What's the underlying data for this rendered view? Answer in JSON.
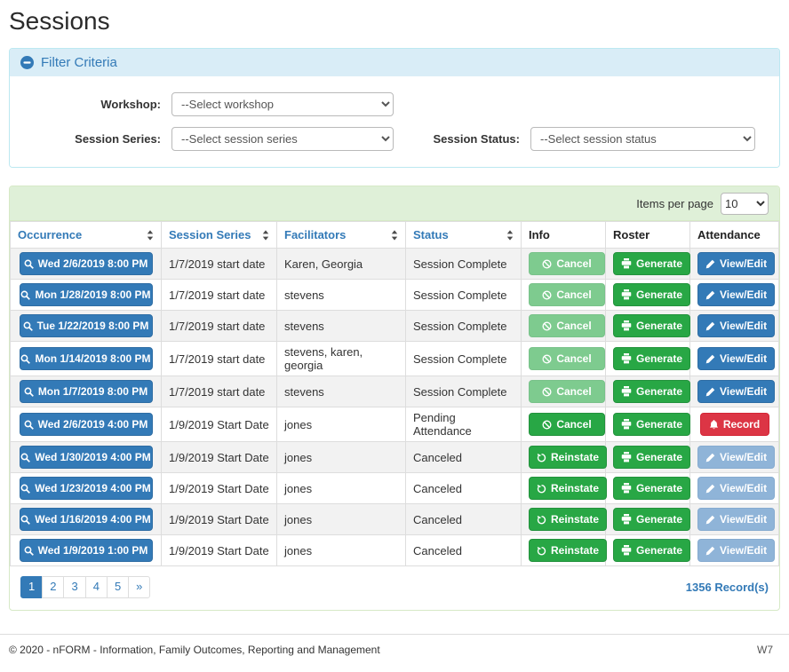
{
  "page": {
    "title": "Sessions"
  },
  "filter": {
    "title": "Filter Criteria",
    "fields": [
      {
        "label": "Workshop:",
        "value": "--Select workshop"
      },
      {
        "label": "Session Series:",
        "value": "--Select session series"
      },
      {
        "label": "Session Status:",
        "value": "--Select session status"
      }
    ]
  },
  "table": {
    "items_per_page_label": "Items per page",
    "items_per_page_value": "10",
    "columns": [
      {
        "label": "Occurrence",
        "sortable": true
      },
      {
        "label": "Session Series",
        "sortable": true
      },
      {
        "label": "Facilitators",
        "sortable": true
      },
      {
        "label": "Status",
        "sortable": true
      },
      {
        "label": "Info",
        "sortable": false
      },
      {
        "label": "Roster",
        "sortable": false
      },
      {
        "label": "Attendance",
        "sortable": false
      }
    ],
    "rows": [
      {
        "occurrence": "Wed 2/6/2019 8:00 PM",
        "series": "1/7/2019 start date",
        "facilitators": "Karen, Georgia",
        "status": "Session Complete",
        "info": {
          "label": "Cancel",
          "icon": "ban-icon",
          "variant": "success",
          "disabled": true
        },
        "roster": {
          "label": "Generate",
          "icon": "printer-icon",
          "variant": "success",
          "disabled": false
        },
        "attendance": {
          "label": "View/Edit",
          "icon": "pencil-icon",
          "variant": "primary",
          "disabled": false
        }
      },
      {
        "occurrence": "Mon 1/28/2019 8:00 PM",
        "series": "1/7/2019 start date",
        "facilitators": "stevens",
        "status": "Session Complete",
        "info": {
          "label": "Cancel",
          "icon": "ban-icon",
          "variant": "success",
          "disabled": true
        },
        "roster": {
          "label": "Generate",
          "icon": "printer-icon",
          "variant": "success",
          "disabled": false
        },
        "attendance": {
          "label": "View/Edit",
          "icon": "pencil-icon",
          "variant": "primary",
          "disabled": false
        }
      },
      {
        "occurrence": "Tue 1/22/2019 8:00 PM",
        "series": "1/7/2019 start date",
        "facilitators": "stevens",
        "status": "Session Complete",
        "info": {
          "label": "Cancel",
          "icon": "ban-icon",
          "variant": "success",
          "disabled": true
        },
        "roster": {
          "label": "Generate",
          "icon": "printer-icon",
          "variant": "success",
          "disabled": false
        },
        "attendance": {
          "label": "View/Edit",
          "icon": "pencil-icon",
          "variant": "primary",
          "disabled": false
        }
      },
      {
        "occurrence": "Mon 1/14/2019 8:00 PM",
        "series": "1/7/2019 start date",
        "facilitators": "stevens, karen, georgia",
        "status": "Session Complete",
        "info": {
          "label": "Cancel",
          "icon": "ban-icon",
          "variant": "success",
          "disabled": true
        },
        "roster": {
          "label": "Generate",
          "icon": "printer-icon",
          "variant": "success",
          "disabled": false
        },
        "attendance": {
          "label": "View/Edit",
          "icon": "pencil-icon",
          "variant": "primary",
          "disabled": false
        }
      },
      {
        "occurrence": "Mon 1/7/2019 8:00 PM",
        "series": "1/7/2019 start date",
        "facilitators": "stevens",
        "status": "Session Complete",
        "info": {
          "label": "Cancel",
          "icon": "ban-icon",
          "variant": "success",
          "disabled": true
        },
        "roster": {
          "label": "Generate",
          "icon": "printer-icon",
          "variant": "success",
          "disabled": false
        },
        "attendance": {
          "label": "View/Edit",
          "icon": "pencil-icon",
          "variant": "primary",
          "disabled": false
        }
      },
      {
        "occurrence": "Wed 2/6/2019 4:00 PM",
        "series": "1/9/2019 Start Date",
        "facilitators": "jones",
        "status": "Pending Attendance",
        "info": {
          "label": "Cancel",
          "icon": "ban-icon",
          "variant": "success",
          "disabled": false
        },
        "roster": {
          "label": "Generate",
          "icon": "printer-icon",
          "variant": "success",
          "disabled": false
        },
        "attendance": {
          "label": "Record",
          "icon": "bell-icon",
          "variant": "danger",
          "disabled": false
        }
      },
      {
        "occurrence": "Wed 1/30/2019 4:00 PM",
        "series": "1/9/2019 Start Date",
        "facilitators": "jones",
        "status": "Canceled",
        "info": {
          "label": "Reinstate",
          "icon": "undo-icon",
          "variant": "success",
          "disabled": false
        },
        "roster": {
          "label": "Generate",
          "icon": "printer-icon",
          "variant": "success",
          "disabled": false
        },
        "attendance": {
          "label": "View/Edit",
          "icon": "pencil-icon",
          "variant": "primary",
          "disabled": true
        }
      },
      {
        "occurrence": "Wed 1/23/2019 4:00 PM",
        "series": "1/9/2019 Start Date",
        "facilitators": "jones",
        "status": "Canceled",
        "info": {
          "label": "Reinstate",
          "icon": "undo-icon",
          "variant": "success",
          "disabled": false
        },
        "roster": {
          "label": "Generate",
          "icon": "printer-icon",
          "variant": "success",
          "disabled": false
        },
        "attendance": {
          "label": "View/Edit",
          "icon": "pencil-icon",
          "variant": "primary",
          "disabled": true
        }
      },
      {
        "occurrence": "Wed 1/16/2019 4:00 PM",
        "series": "1/9/2019 Start Date",
        "facilitators": "jones",
        "status": "Canceled",
        "info": {
          "label": "Reinstate",
          "icon": "undo-icon",
          "variant": "success",
          "disabled": false
        },
        "roster": {
          "label": "Generate",
          "icon": "printer-icon",
          "variant": "success",
          "disabled": false
        },
        "attendance": {
          "label": "View/Edit",
          "icon": "pencil-icon",
          "variant": "primary",
          "disabled": true
        }
      },
      {
        "occurrence": "Wed 1/9/2019 1:00 PM",
        "series": "1/9/2019 Start Date",
        "facilitators": "jones",
        "status": "Canceled",
        "info": {
          "label": "Reinstate",
          "icon": "undo-icon",
          "variant": "success",
          "disabled": false
        },
        "roster": {
          "label": "Generate",
          "icon": "printer-icon",
          "variant": "success",
          "disabled": false
        },
        "attendance": {
          "label": "View/Edit",
          "icon": "pencil-icon",
          "variant": "primary",
          "disabled": true
        }
      }
    ],
    "pagination": [
      "1",
      "2",
      "3",
      "4",
      "5",
      "»"
    ],
    "active_page": "1",
    "record_count": "1356 Record(s)"
  },
  "colors": {
    "primary_blue": "#337ab7",
    "success_green": "#28a745",
    "danger_red": "#dc3545",
    "info_header_bg": "#d9edf7",
    "success_header_bg": "#dff0d8"
  },
  "footer": {
    "copyright": "© 2020 - nFORM - Information, Family Outcomes, Reporting and Management",
    "version": "W7"
  }
}
